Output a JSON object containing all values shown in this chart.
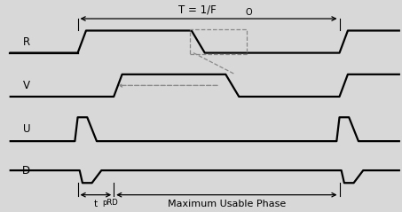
{
  "bg_color": "#d8d8d8",
  "plot_bg": "#ffffff",
  "signal_color": "#000000",
  "dash_color": "#888888",
  "label_R": "R",
  "label_V": "V",
  "label_U": "U",
  "label_D": "D",
  "label_T": "T = 1/F",
  "label_Fo": "O",
  "label_tprd": "t",
  "label_tprd_sub": "pRD",
  "label_mup": "Maximum Usable Phase",
  "yR": 3.6,
  "yV": 2.5,
  "yU": 1.4,
  "yD": 0.35,
  "amp": 0.28,
  "ampUD": 0.3,
  "x_period_start": 1.8,
  "x_period_end": 8.7,
  "x_tprd_end": 2.75,
  "xlim_left": -0.2,
  "xlim_right": 10.3,
  "ylim_bottom": -0.55,
  "ylim_top": 4.5
}
